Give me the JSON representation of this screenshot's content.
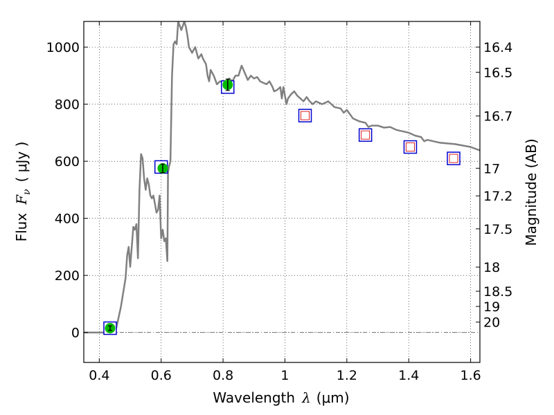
{
  "chart_data": {
    "type": "scatter",
    "xlabel_prefix": "Wavelength",
    "xlabel_symbol": "λ",
    "xlabel_unit": "(μm)",
    "ylabel_prefix": "Flux",
    "ylabel_symbol": "F",
    "ylabel_subscript": "ν",
    "ylabel_unit": "( μJy )",
    "y2label": "Magnitude (AB)",
    "xlim": [
      0.35,
      1.63
    ],
    "ylim": [
      -105,
      1090
    ],
    "grid": true,
    "x_ticks": [
      {
        "value": 0.4,
        "label": "0.4"
      },
      {
        "value": 0.6,
        "label": "0.6"
      },
      {
        "value": 0.8,
        "label": "0.8"
      },
      {
        "value": 1.0,
        "label": "1"
      },
      {
        "value": 1.2,
        "label": "1.2"
      },
      {
        "value": 1.4,
        "label": "1.4"
      },
      {
        "value": 1.6,
        "label": "1.6"
      }
    ],
    "y_ticks": [
      {
        "value": 0,
        "label": "0"
      },
      {
        "value": 200,
        "label": "200"
      },
      {
        "value": 400,
        "label": "400"
      },
      {
        "value": 600,
        "label": "600"
      },
      {
        "value": 800,
        "label": "800"
      },
      {
        "value": 1000,
        "label": "1000"
      }
    ],
    "mag_ticks": [
      {
        "value": 16.4,
        "label": "16.4"
      },
      {
        "value": 16.5,
        "label": "16.5"
      },
      {
        "value": 16.7,
        "label": "16.7"
      },
      {
        "value": 17.0,
        "label": "17"
      },
      {
        "value": 17.2,
        "label": "17.2"
      },
      {
        "value": 17.5,
        "label": "17.5"
      },
      {
        "value": 18.0,
        "label": "18"
      },
      {
        "value": 18.5,
        "label": "18.5"
      },
      {
        "value": 19.0,
        "label": "19"
      },
      {
        "value": 20.0,
        "label": "20"
      }
    ],
    "model_spectrum": {
      "color": "#808080",
      "points": [
        [
          0.35,
          0
        ],
        [
          0.44,
          0
        ],
        [
          0.455,
          15
        ],
        [
          0.47,
          90
        ],
        [
          0.485,
          190
        ],
        [
          0.49,
          270
        ],
        [
          0.495,
          300
        ],
        [
          0.5,
          230
        ],
        [
          0.505,
          300
        ],
        [
          0.51,
          370
        ],
        [
          0.515,
          360
        ],
        [
          0.52,
          380
        ],
        [
          0.525,
          260
        ],
        [
          0.53,
          500
        ],
        [
          0.535,
          625
        ],
        [
          0.54,
          610
        ],
        [
          0.545,
          540
        ],
        [
          0.55,
          500
        ],
        [
          0.555,
          540
        ],
        [
          0.56,
          520
        ],
        [
          0.565,
          480
        ],
        [
          0.57,
          470
        ],
        [
          0.575,
          480
        ],
        [
          0.58,
          450
        ],
        [
          0.585,
          420
        ],
        [
          0.59,
          430
        ],
        [
          0.595,
          480
        ],
        [
          0.6,
          330
        ],
        [
          0.605,
          360
        ],
        [
          0.61,
          320
        ],
        [
          0.615,
          330
        ],
        [
          0.62,
          250
        ],
        [
          0.622,
          560
        ],
        [
          0.625,
          580
        ],
        [
          0.63,
          600
        ],
        [
          0.635,
          900
        ],
        [
          0.64,
          1010
        ],
        [
          0.645,
          1020
        ],
        [
          0.65,
          1010
        ],
        [
          0.655,
          1090
        ],
        [
          0.665,
          1060
        ],
        [
          0.675,
          1090
        ],
        [
          0.68,
          1070
        ],
        [
          0.685,
          1040
        ],
        [
          0.69,
          1000
        ],
        [
          0.7,
          980
        ],
        [
          0.71,
          1000
        ],
        [
          0.72,
          960
        ],
        [
          0.73,
          975
        ],
        [
          0.735,
          960
        ],
        [
          0.745,
          940
        ],
        [
          0.75,
          900
        ],
        [
          0.755,
          880
        ],
        [
          0.76,
          920
        ],
        [
          0.77,
          900
        ],
        [
          0.78,
          870
        ],
        [
          0.79,
          880
        ],
        [
          0.81,
          875
        ],
        [
          0.82,
          890
        ],
        [
          0.83,
          880
        ],
        [
          0.84,
          900
        ],
        [
          0.85,
          900
        ],
        [
          0.86,
          935
        ],
        [
          0.87,
          910
        ],
        [
          0.88,
          885
        ],
        [
          0.89,
          900
        ],
        [
          0.9,
          890
        ],
        [
          0.91,
          895
        ],
        [
          0.92,
          880
        ],
        [
          0.93,
          875
        ],
        [
          0.94,
          870
        ],
        [
          0.95,
          880
        ],
        [
          0.96,
          860
        ],
        [
          0.965,
          845
        ],
        [
          0.975,
          850
        ],
        [
          0.985,
          860
        ],
        [
          0.99,
          820
        ],
        [
          0.995,
          860
        ],
        [
          1.0,
          830
        ],
        [
          1.005,
          800
        ],
        [
          1.01,
          820
        ],
        [
          1.02,
          835
        ],
        [
          1.03,
          845
        ],
        [
          1.04,
          830
        ],
        [
          1.05,
          820
        ],
        [
          1.06,
          810
        ],
        [
          1.07,
          825
        ],
        [
          1.08,
          810
        ],
        [
          1.09,
          800
        ],
        [
          1.1,
          810
        ],
        [
          1.12,
          800
        ],
        [
          1.14,
          810
        ],
        [
          1.16,
          790
        ],
        [
          1.18,
          785
        ],
        [
          1.19,
          770
        ],
        [
          1.2,
          780
        ],
        [
          1.22,
          750
        ],
        [
          1.24,
          740
        ],
        [
          1.26,
          735
        ],
        [
          1.27,
          720
        ],
        [
          1.28,
          725
        ],
        [
          1.3,
          725
        ],
        [
          1.32,
          718
        ],
        [
          1.34,
          720
        ],
        [
          1.36,
          710
        ],
        [
          1.38,
          705
        ],
        [
          1.4,
          700
        ],
        [
          1.42,
          690
        ],
        [
          1.44,
          685
        ],
        [
          1.45,
          670
        ],
        [
          1.46,
          675
        ],
        [
          1.5,
          665
        ],
        [
          1.55,
          660
        ],
        [
          1.6,
          650
        ],
        [
          1.63,
          638
        ]
      ]
    },
    "observed": {
      "color": "#00bb00",
      "points": [
        {
          "x": 0.435,
          "y": 15,
          "err": 8
        },
        {
          "x": 0.605,
          "y": 575,
          "err": 15
        },
        {
          "x": 0.815,
          "y": 868,
          "err": 20
        }
      ]
    },
    "model_photometry": {
      "color": "#0000cc",
      "points": [
        {
          "x": 0.435,
          "y": 15
        },
        {
          "x": 0.6,
          "y": 580
        },
        {
          "x": 0.815,
          "y": 860
        }
      ]
    },
    "predicted_photometry": {
      "color": "#0000cc",
      "inner_color": "#dd2222",
      "points": [
        {
          "x": 1.065,
          "y": 760
        },
        {
          "x": 1.26,
          "y": 692
        },
        {
          "x": 1.405,
          "y": 650
        },
        {
          "x": 1.545,
          "y": 610
        }
      ]
    },
    "zero_line_color": "#707070"
  }
}
